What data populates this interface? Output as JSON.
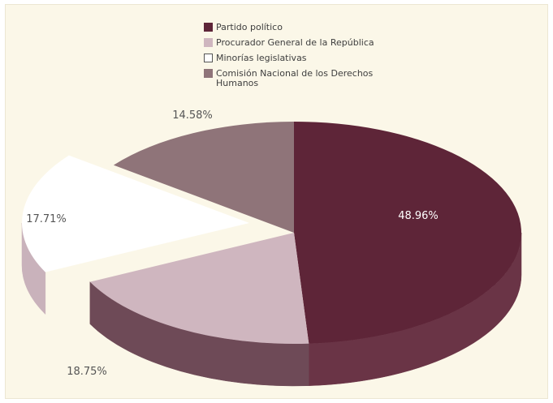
{
  "chart_data": {
    "type": "pie",
    "title": "",
    "categories": [
      "Partido político",
      "Procurador General de la República",
      "Minorías legislativas",
      "Comisión Nacional de los Derechos Humanos"
    ],
    "values": [
      48.96,
      18.75,
      17.71,
      14.58
    ],
    "labels": [
      "48.96%",
      "18.75%",
      "17.71%",
      "14.58%"
    ],
    "colors": [
      "#5e2538",
      "#cfb6bf",
      "#ffffff",
      "#8f7479"
    ],
    "side_colors": [
      "#6a3446",
      "#6e4a57",
      "#c9b2bb",
      "#7a6066"
    ],
    "legend_position": "top",
    "style": "3d"
  }
}
